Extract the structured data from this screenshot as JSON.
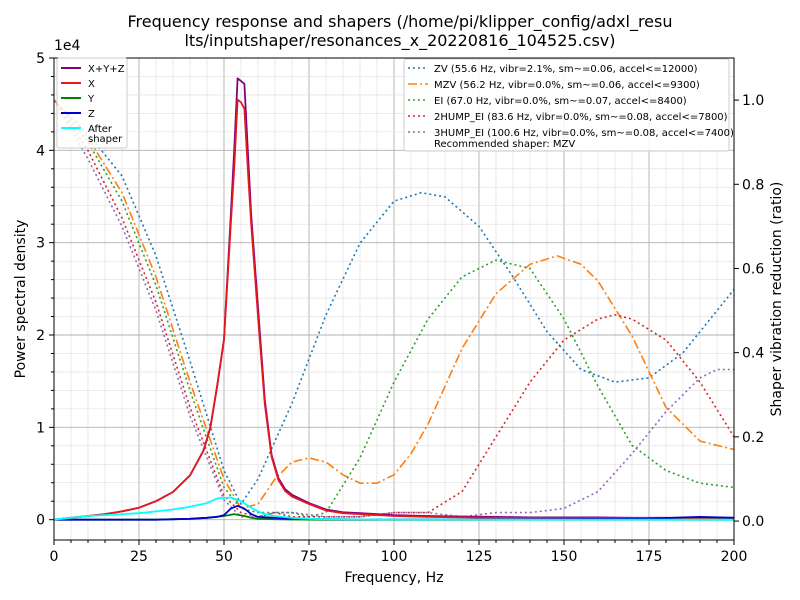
{
  "chart_data": {
    "type": "line",
    "title_line1": "Frequency response and shapers (/home/pi/klipper_config/adxl_resu",
    "title_line2": "lts/inputshaper/resonances_x_20220816_104525.csv)",
    "xlabel": "Frequency, Hz",
    "ylabel": "Power spectral density",
    "y2label": "Shaper vibration reduction (ratio)",
    "offset_text": "1e4",
    "xlim": [
      0,
      200
    ],
    "ylim": [
      -2200,
      50000
    ],
    "y2lim": [
      -0.045,
      1.1
    ],
    "xticks": [
      "0",
      "25",
      "50",
      "75",
      "100",
      "125",
      "150",
      "175",
      "200"
    ],
    "yticks": [
      "0",
      "1",
      "2",
      "3",
      "4",
      "5"
    ],
    "y2ticks": [
      "0.0",
      "0.2",
      "0.4",
      "0.6",
      "0.8",
      "1.0"
    ],
    "grid": true,
    "legend_left_placement": "top-left",
    "legend_right_placement": "top-right",
    "psd_series": [
      {
        "name": "X+Y+Z",
        "color": "#800080",
        "x": [
          0,
          5,
          10,
          15,
          20,
          25,
          30,
          35,
          40,
          44,
          46,
          48,
          50,
          52,
          53,
          54,
          55,
          56,
          57,
          58,
          60,
          62,
          64,
          66,
          68,
          70,
          75,
          80,
          85,
          90,
          100,
          110,
          120,
          130,
          140,
          150,
          160,
          170,
          180,
          190,
          200
        ],
        "y": [
          0,
          200,
          400,
          600,
          900,
          1300,
          2000,
          3000,
          4800,
          7500,
          10000,
          14500,
          19500,
          33000,
          40000,
          47800,
          47500,
          47200,
          40000,
          33000,
          23000,
          13000,
          7000,
          4500,
          3300,
          2700,
          1800,
          1100,
          800,
          700,
          500,
          400,
          350,
          300,
          250,
          250,
          250,
          200,
          200,
          200,
          200
        ]
      },
      {
        "name": "X",
        "color": "#e31a1c",
        "x": [
          0,
          5,
          10,
          15,
          20,
          25,
          30,
          35,
          40,
          44,
          46,
          48,
          50,
          52,
          53,
          54,
          55,
          56,
          57,
          58,
          60,
          62,
          64,
          66,
          68,
          70,
          75,
          80,
          85,
          90,
          100,
          110,
          120,
          130,
          140,
          150,
          160,
          170,
          180,
          190,
          200
        ],
        "y": [
          0,
          200,
          400,
          600,
          900,
          1300,
          2000,
          3000,
          4800,
          7500,
          10000,
          14500,
          19500,
          32000,
          38000,
          45500,
          45200,
          44500,
          38000,
          32000,
          22000,
          12500,
          6800,
          4300,
          3100,
          2500,
          1700,
          1000,
          700,
          600,
          400,
          300,
          250,
          200,
          180,
          170,
          160,
          150,
          150,
          150,
          150
        ]
      },
      {
        "name": "Y",
        "color": "#008000",
        "x": [
          0,
          10,
          20,
          30,
          40,
          45,
          50,
          53,
          56,
          58,
          60,
          65,
          70,
          80,
          100,
          130,
          160,
          200
        ],
        "y": [
          0,
          0,
          0,
          0,
          100,
          200,
          400,
          600,
          400,
          200,
          100,
          50,
          20,
          0,
          0,
          0,
          0,
          0
        ]
      },
      {
        "name": "Z",
        "color": "#0000cd",
        "x": [
          0,
          10,
          20,
          30,
          40,
          45,
          48,
          50,
          52,
          54,
          56,
          58,
          60,
          65,
          70,
          80,
          90,
          100,
          120,
          150,
          175,
          185,
          190,
          200
        ],
        "y": [
          0,
          0,
          0,
          0,
          100,
          200,
          300,
          500,
          1200,
          1500,
          1200,
          600,
          300,
          200,
          100,
          50,
          30,
          30,
          30,
          50,
          100,
          250,
          300,
          200
        ]
      },
      {
        "name": "After\nshaper",
        "color": "#00ffff",
        "x": [
          0,
          5,
          10,
          15,
          20,
          25,
          30,
          35,
          40,
          45,
          48,
          52,
          55,
          58,
          60,
          62,
          65,
          70,
          75,
          80,
          90,
          100,
          120,
          150,
          200
        ],
        "y": [
          0,
          200,
          400,
          500,
          600,
          700,
          900,
          1100,
          1400,
          1800,
          2300,
          2400,
          2000,
          1300,
          900,
          600,
          400,
          200,
          100,
          50,
          30,
          20,
          20,
          10,
          0
        ]
      }
    ],
    "shaper_series": [
      {
        "name": "ZV (55.6 Hz, vibr=2.1%, sm~=0.06, accel<=12000)",
        "color": "#1f77b4",
        "dash": "2,3",
        "x": [
          0,
          10,
          20,
          30,
          40,
          50,
          55,
          60,
          70,
          80,
          90,
          100,
          108,
          115,
          125,
          135,
          145,
          155,
          165,
          175,
          185,
          195,
          200
        ],
        "y": [
          1.0,
          0.92,
          0.82,
          0.63,
          0.38,
          0.12,
          0.04,
          0.1,
          0.28,
          0.49,
          0.66,
          0.76,
          0.78,
          0.77,
          0.7,
          0.58,
          0.45,
          0.36,
          0.33,
          0.34,
          0.4,
          0.5,
          0.55
        ]
      },
      {
        "name": "MZV (56.2 Hz, vibr=0.0%, sm~=0.06, accel<=9300)",
        "color": "#ff7f0e",
        "dash": "9,3,2,3",
        "x": [
          0,
          10,
          20,
          30,
          40,
          50,
          55,
          60,
          65,
          70,
          75,
          80,
          85,
          90,
          95,
          100,
          105,
          110,
          120,
          130,
          140,
          148,
          155,
          160,
          170,
          180,
          190,
          200
        ],
        "y": [
          1.0,
          0.91,
          0.78,
          0.58,
          0.33,
          0.1,
          0.03,
          0.04,
          0.1,
          0.14,
          0.15,
          0.14,
          0.11,
          0.09,
          0.09,
          0.11,
          0.16,
          0.23,
          0.41,
          0.54,
          0.61,
          0.63,
          0.61,
          0.57,
          0.44,
          0.27,
          0.19,
          0.17
        ]
      },
      {
        "name": "EI (67.0 Hz, vibr=0.0%, sm~=0.07, accel<=8400)",
        "color": "#2ca02c",
        "dash": "2,3",
        "x": [
          0,
          10,
          20,
          30,
          40,
          50,
          55,
          60,
          65,
          70,
          75,
          80,
          90,
          100,
          110,
          120,
          130,
          140,
          150,
          160,
          170,
          175,
          180,
          190,
          200
        ],
        "y": [
          1.0,
          0.9,
          0.76,
          0.56,
          0.31,
          0.08,
          0.03,
          0.02,
          0.02,
          0.02,
          0.01,
          0.02,
          0.15,
          0.33,
          0.48,
          0.58,
          0.62,
          0.6,
          0.48,
          0.32,
          0.18,
          0.15,
          0.12,
          0.09,
          0.08
        ]
      },
      {
        "name": "2HUMP_EI (83.6 Hz, vibr=0.0%, sm~=0.08, accel<=7800)",
        "color": "#d62728",
        "dash": "2,3",
        "x": [
          0,
          10,
          20,
          30,
          40,
          50,
          55,
          60,
          65,
          70,
          75,
          80,
          90,
          100,
          110,
          120,
          130,
          140,
          150,
          160,
          165,
          170,
          180,
          190,
          200
        ],
        "y": [
          1.0,
          0.88,
          0.72,
          0.52,
          0.27,
          0.06,
          0.02,
          0.01,
          0.02,
          0.01,
          0.01,
          0.01,
          0.01,
          0.02,
          0.02,
          0.07,
          0.2,
          0.33,
          0.43,
          0.48,
          0.49,
          0.48,
          0.43,
          0.33,
          0.2
        ]
      },
      {
        "name": "3HUMP_EI (100.6 Hz, vibr=0.0%, sm~=0.08, accel<=7400)",
        "color": "#9467bd",
        "dash": "2,3",
        "x": [
          0,
          10,
          20,
          30,
          40,
          50,
          55,
          60,
          65,
          70,
          80,
          90,
          100,
          110,
          120,
          130,
          140,
          150,
          160,
          170,
          180,
          190,
          195,
          200
        ],
        "y": [
          1.0,
          0.86,
          0.7,
          0.5,
          0.25,
          0.05,
          0.01,
          0.01,
          0.02,
          0.02,
          0.01,
          0.01,
          0.02,
          0.02,
          0.01,
          0.02,
          0.02,
          0.03,
          0.07,
          0.16,
          0.26,
          0.34,
          0.36,
          0.36
        ]
      }
    ],
    "recommended_text": "Recommended shaper: MZV"
  }
}
